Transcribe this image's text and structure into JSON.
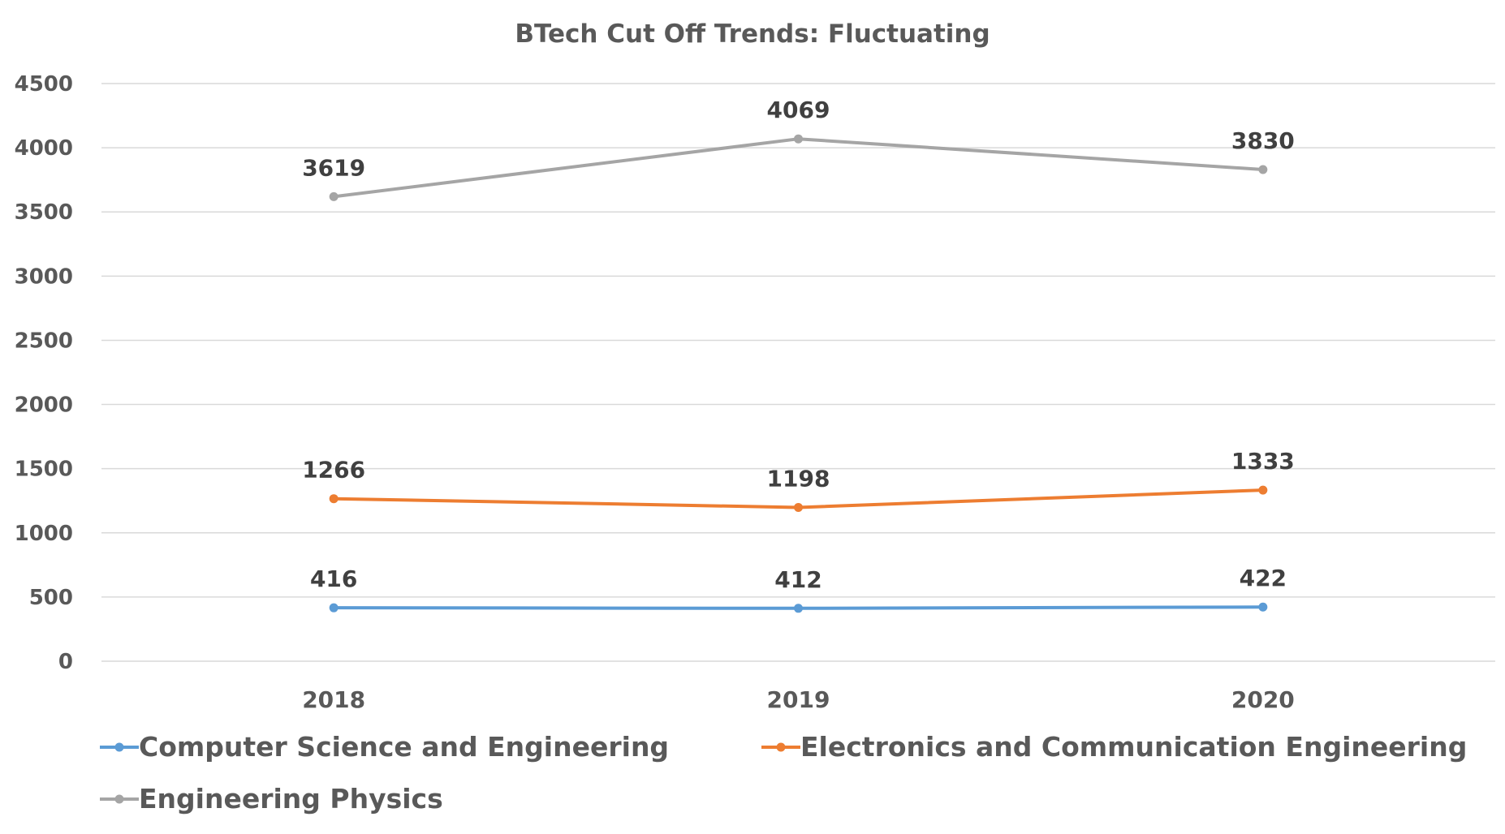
{
  "chart_data": {
    "type": "line",
    "title": "BTech Cut Off Trends: Fluctuating",
    "xlabel": "",
    "ylabel": "",
    "categories": [
      "2018",
      "2019",
      "2020"
    ],
    "ylim": [
      0,
      4500
    ],
    "yticks": [
      0,
      500,
      1000,
      1500,
      2000,
      2500,
      3000,
      3500,
      4000,
      4500
    ],
    "grid": true,
    "legend_position": "bottom",
    "series": [
      {
        "name": "Computer Science and Engineering",
        "color": "#5B9BD5",
        "values": [
          416,
          412,
          422
        ]
      },
      {
        "name": "Electronics and Communication Engineering",
        "color": "#ED7D31",
        "values": [
          1266,
          1198,
          1333
        ]
      },
      {
        "name": "Engineering Physics",
        "color": "#A5A5A5",
        "values": [
          3619,
          4069,
          3830
        ]
      }
    ]
  }
}
